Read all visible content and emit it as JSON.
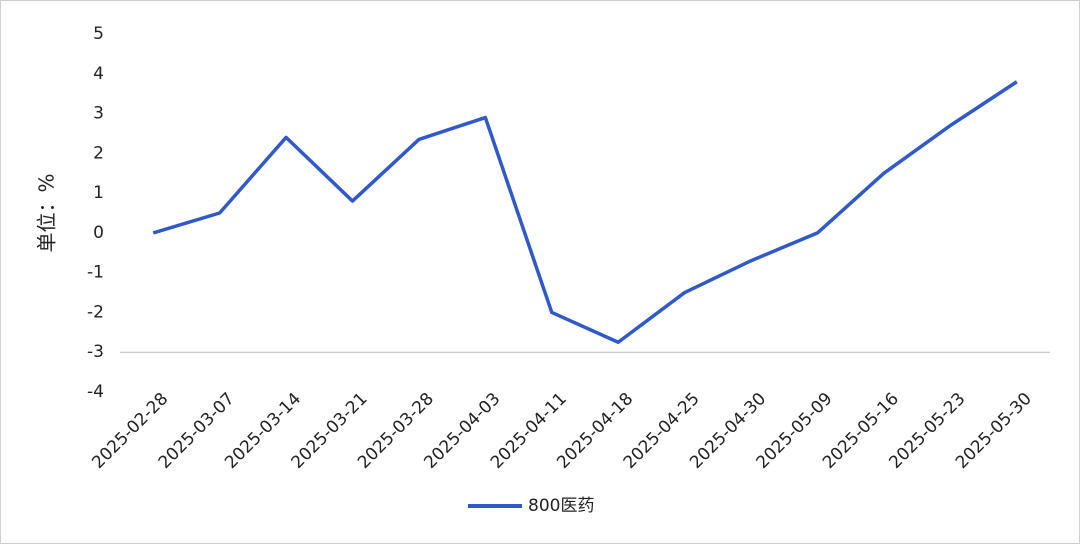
{
  "chart_data": {
    "type": "line",
    "y_label": "单位：%",
    "categories": [
      "2025-02-28",
      "2025-03-07",
      "2025-03-14",
      "2025-03-21",
      "2025-03-28",
      "2025-04-03",
      "2025-04-11",
      "2025-04-18",
      "2025-04-25",
      "2025-04-30",
      "2025-05-09",
      "2025-05-16",
      "2025-05-23",
      "2025-05-30"
    ],
    "series": [
      {
        "name": "800医药",
        "color": "#3059c9",
        "values": [
          0.0,
          0.5,
          2.4,
          0.8,
          2.35,
          2.9,
          -2.0,
          -2.75,
          -1.5,
          -0.7,
          0.0,
          1.5,
          2.7,
          3.8
        ]
      }
    ],
    "ylim": [
      -4,
      5
    ],
    "yticks": [
      -4,
      -3,
      -2,
      -1,
      0,
      1,
      2,
      3,
      4,
      5
    ],
    "x_axis_at": -3,
    "grid": false,
    "legend": "bottom"
  }
}
